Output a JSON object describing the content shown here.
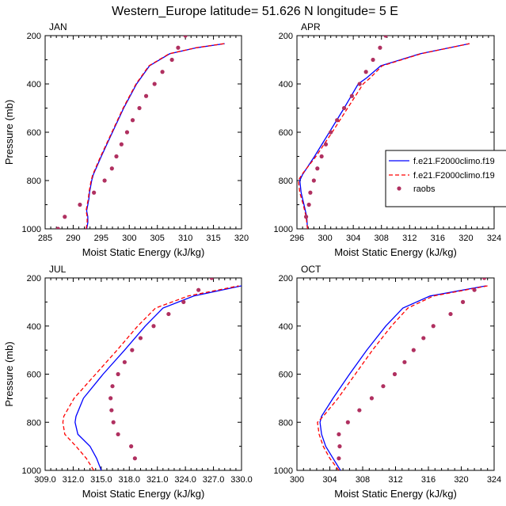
{
  "title": "Western_Europe  latitude= 51.626 N longitude= 5 E",
  "colors": {
    "model1": "#0000ff",
    "model2": "#ff0000",
    "obs": "#b03060"
  },
  "legend": {
    "entries": [
      "f.e21.F2000climo.f19",
      "f.e21.F2000climo.f19",
      "raobs"
    ]
  },
  "chart_data": [
    {
      "type": "line",
      "panel": "JAN",
      "xlabel": "Moist Static Energy (kJ/kg)",
      "ylabel": "Pressure (mb)",
      "xlim": [
        285,
        320
      ],
      "ylim": [
        1000,
        200
      ],
      "xticks": [
        285,
        290,
        295,
        300,
        305,
        310,
        315,
        320
      ],
      "xtick_labels": [
        "285",
        "290",
        "295",
        "300",
        "305",
        "310",
        "315",
        "320"
      ],
      "yticks": [
        200,
        400,
        600,
        800,
        1000
      ],
      "ytick_labels": [
        "200",
        "400",
        "600",
        "800",
        "1000"
      ],
      "series": [
        {
          "name": "f.e21.F2000climo.f19 (blue)",
          "style": "solid",
          "color": "#0000ff",
          "points": [
            [
              292.4,
              1000
            ],
            [
              292.6,
              975
            ],
            [
              292.6,
              950
            ],
            [
              292.4,
              925
            ],
            [
              292.6,
              900
            ],
            [
              292.8,
              875
            ],
            [
              292.9,
              850
            ],
            [
              293.3,
              800
            ],
            [
              293.6,
              775
            ],
            [
              295.0,
              700
            ],
            [
              297.0,
              600
            ],
            [
              299.0,
              500
            ],
            [
              301.3,
              400
            ],
            [
              303.6,
              325
            ],
            [
              307.2,
              275
            ],
            [
              312.0,
              250
            ],
            [
              317.0,
              233
            ]
          ]
        },
        {
          "name": "f.e21.F2000climo.f19 (red)",
          "style": "dashed",
          "color": "#ff0000",
          "points": [
            [
              292.3,
              1000
            ],
            [
              292.5,
              975
            ],
            [
              292.5,
              950
            ],
            [
              292.3,
              925
            ],
            [
              292.5,
              900
            ],
            [
              292.7,
              875
            ],
            [
              292.8,
              850
            ],
            [
              293.2,
              800
            ],
            [
              293.5,
              775
            ],
            [
              294.9,
              700
            ],
            [
              296.9,
              600
            ],
            [
              298.9,
              500
            ],
            [
              301.2,
              400
            ],
            [
              303.5,
              325
            ],
            [
              307.1,
              275
            ],
            [
              311.9,
              250
            ],
            [
              316.9,
              233
            ]
          ]
        },
        {
          "name": "raobs",
          "style": "markers",
          "color": "#b03060",
          "points": [
            [
              287.3,
              1000
            ],
            [
              288.5,
              950
            ],
            [
              291.2,
              900
            ],
            [
              293.7,
              850
            ],
            [
              295.6,
              800
            ],
            [
              296.9,
              750
            ],
            [
              297.7,
              700
            ],
            [
              298.6,
              650
            ],
            [
              299.6,
              600
            ],
            [
              300.6,
              550
            ],
            [
              301.8,
              500
            ],
            [
              303.0,
              450
            ],
            [
              304.5,
              400
            ],
            [
              305.9,
              350
            ],
            [
              307.6,
              300
            ],
            [
              308.7,
              250
            ],
            [
              310.0,
              200
            ]
          ]
        }
      ]
    },
    {
      "type": "line",
      "panel": "APR",
      "xlabel": "Moist Static Energy (kJ/kg)",
      "ylabel": "",
      "xlim": [
        296,
        324
      ],
      "ylim": [
        1000,
        200
      ],
      "xticks": [
        296,
        300,
        304,
        308,
        312,
        316,
        320,
        324
      ],
      "xtick_labels": [
        "296",
        "300",
        "304",
        "308",
        "312",
        "316",
        "320",
        "324"
      ],
      "yticks": [
        200,
        400,
        600,
        800,
        1000
      ],
      "ytick_labels": [
        "200",
        "400",
        "600",
        "800",
        "1000"
      ],
      "series": [
        {
          "name": "f.e21.F2000climo.f19 (blue)",
          "style": "solid",
          "color": "#0000ff",
          "points": [
            [
              297.5,
              1000
            ],
            [
              297.4,
              950
            ],
            [
              297.0,
              900
            ],
            [
              296.6,
              850
            ],
            [
              296.4,
              800
            ],
            [
              296.8,
              775
            ],
            [
              298.5,
              700
            ],
            [
              300.6,
              600
            ],
            [
              302.7,
              500
            ],
            [
              304.7,
              400
            ],
            [
              305.9,
              375
            ],
            [
              307.9,
              325
            ],
            [
              313.5,
              275
            ],
            [
              320.5,
              233
            ]
          ]
        },
        {
          "name": "f.e21.F2000climo.f19 (red)",
          "style": "dashed",
          "color": "#ff0000",
          "points": [
            [
              297.5,
              1000
            ],
            [
              297.3,
              950
            ],
            [
              296.9,
              900
            ],
            [
              296.4,
              850
            ],
            [
              296.2,
              800
            ],
            [
              296.7,
              775
            ],
            [
              298.7,
              700
            ],
            [
              301.0,
              600
            ],
            [
              303.2,
              500
            ],
            [
              305.4,
              400
            ],
            [
              306.4,
              375
            ],
            [
              308.1,
              325
            ],
            [
              313.6,
              275
            ],
            [
              320.5,
              233
            ]
          ]
        },
        {
          "name": "raobs",
          "style": "markers",
          "color": "#b03060",
          "points": [
            [
              297.3,
              950
            ],
            [
              297.7,
              900
            ],
            [
              297.9,
              850
            ],
            [
              298.4,
              800
            ],
            [
              298.9,
              750
            ],
            [
              299.5,
              700
            ],
            [
              300.1,
              650
            ],
            [
              300.8,
              600
            ],
            [
              301.7,
              550
            ],
            [
              302.7,
              500
            ],
            [
              303.8,
              450
            ],
            [
              304.9,
              400
            ],
            [
              305.8,
              350
            ],
            [
              306.8,
              300
            ],
            [
              307.8,
              250
            ],
            [
              308.6,
              200
            ]
          ]
        }
      ]
    },
    {
      "type": "line",
      "panel": "JUL",
      "xlabel": "Moist Static Energy (kJ/kg)",
      "ylabel": "Pressure (mb)",
      "xlim": [
        309,
        330
      ],
      "ylim": [
        1000,
        200
      ],
      "xticks": [
        309,
        312,
        315,
        318,
        321,
        324,
        327,
        330
      ],
      "xtick_labels": [
        "309.0",
        "312.0",
        "315.0",
        "318.0",
        "321.0",
        "324.0",
        "327.0",
        "330.0"
      ],
      "yticks": [
        200,
        400,
        600,
        800,
        1000
      ],
      "ytick_labels": [
        "200",
        "400",
        "600",
        "800",
        "1000"
      ],
      "series": [
        {
          "name": "f.e21.F2000climo.f19 (blue)",
          "style": "solid",
          "color": "#0000ff",
          "points": [
            [
              315.0,
              1000
            ],
            [
              314.5,
              950
            ],
            [
              313.8,
              900
            ],
            [
              312.5,
              850
            ],
            [
              312.2,
              800
            ],
            [
              312.3,
              775
            ],
            [
              313.1,
              700
            ],
            [
              315.2,
              600
            ],
            [
              317.5,
              500
            ],
            [
              319.7,
              400
            ],
            [
              321.6,
              325
            ],
            [
              324.9,
              275
            ],
            [
              330.0,
              233
            ]
          ]
        },
        {
          "name": "f.e21.F2000climo.f19 (red)",
          "style": "dashed",
          "color": "#ff0000",
          "points": [
            [
              314.2,
              1000
            ],
            [
              313.4,
              950
            ],
            [
              312.3,
              900
            ],
            [
              311.1,
              850
            ],
            [
              310.9,
              800
            ],
            [
              311.0,
              775
            ],
            [
              312.1,
              700
            ],
            [
              314.4,
              600
            ],
            [
              316.7,
              500
            ],
            [
              318.9,
              400
            ],
            [
              320.8,
              325
            ],
            [
              324.3,
              275
            ],
            [
              329.7,
              233
            ]
          ]
        },
        {
          "name": "raobs",
          "style": "markers",
          "color": "#b03060",
          "points": [
            [
              318.6,
              950
            ],
            [
              318.2,
              900
            ],
            [
              316.8,
              850
            ],
            [
              316.3,
              800
            ],
            [
              316.1,
              750
            ],
            [
              316.0,
              700
            ],
            [
              316.2,
              650
            ],
            [
              316.8,
              600
            ],
            [
              317.5,
              550
            ],
            [
              318.3,
              500
            ],
            [
              319.2,
              450
            ],
            [
              320.6,
              400
            ],
            [
              322.2,
              350
            ],
            [
              323.8,
              300
            ],
            [
              325.4,
              250
            ],
            [
              326.8,
              200
            ]
          ]
        }
      ]
    },
    {
      "type": "line",
      "panel": "OCT",
      "xlabel": "Moist Static Energy (kJ/kg)",
      "ylabel": "",
      "xlim": [
        300,
        324
      ],
      "ylim": [
        1000,
        200
      ],
      "xticks": [
        300,
        304,
        308,
        312,
        316,
        320,
        324
      ],
      "xtick_labels": [
        "300",
        "304",
        "308",
        "312",
        "316",
        "320",
        "324"
      ],
      "yticks": [
        200,
        400,
        600,
        800,
        1000
      ],
      "ytick_labels": [
        "200",
        "400",
        "600",
        "800",
        "1000"
      ],
      "series": [
        {
          "name": "f.e21.F2000climo.f19 (blue)",
          "style": "solid",
          "color": "#0000ff",
          "points": [
            [
              305.3,
              1000
            ],
            [
              304.4,
              950
            ],
            [
              303.5,
              900
            ],
            [
              303.0,
              850
            ],
            [
              302.8,
              800
            ],
            [
              303.0,
              775
            ],
            [
              304.4,
              700
            ],
            [
              306.4,
              600
            ],
            [
              308.5,
              500
            ],
            [
              310.8,
              400
            ],
            [
              312.9,
              325
            ],
            [
              316.2,
              275
            ],
            [
              323.0,
              233
            ]
          ]
        },
        {
          "name": "f.e21.F2000climo.f19 (red)",
          "style": "dashed",
          "color": "#ff0000",
          "points": [
            [
              305.1,
              1000
            ],
            [
              304.0,
              950
            ],
            [
              303.2,
              900
            ],
            [
              302.7,
              850
            ],
            [
              302.5,
              800
            ],
            [
              303.2,
              775
            ],
            [
              305.0,
              700
            ],
            [
              307.1,
              600
            ],
            [
              309.2,
              500
            ],
            [
              311.5,
              400
            ],
            [
              313.5,
              325
            ],
            [
              316.6,
              275
            ],
            [
              323.2,
              233
            ]
          ]
        },
        {
          "name": "raobs",
          "style": "markers",
          "color": "#b03060",
          "points": [
            [
              305.1,
              950
            ],
            [
              305.2,
              900
            ],
            [
              305.1,
              850
            ],
            [
              306.2,
              800
            ],
            [
              307.6,
              750
            ],
            [
              309.1,
              700
            ],
            [
              310.5,
              650
            ],
            [
              311.9,
              600
            ],
            [
              313.1,
              550
            ],
            [
              314.2,
              500
            ],
            [
              315.4,
              450
            ],
            [
              316.6,
              400
            ],
            [
              318.7,
              350
            ],
            [
              320.2,
              300
            ],
            [
              321.6,
              250
            ],
            [
              322.8,
              200
            ]
          ]
        }
      ]
    }
  ]
}
